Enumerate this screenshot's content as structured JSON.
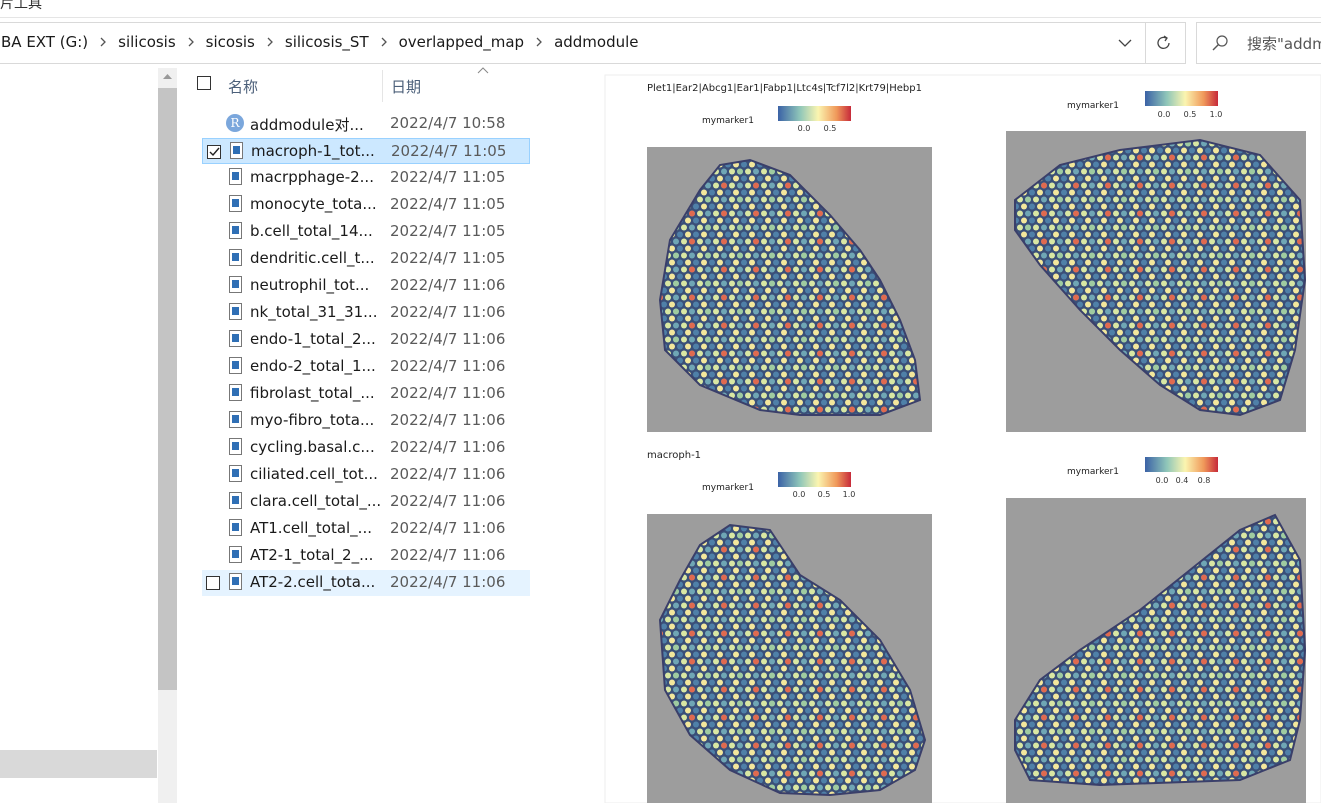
{
  "ribbon": {
    "tab": "片工具"
  },
  "address": {
    "path": [
      "BA EXT (G:)",
      "silicosis",
      "sicosis",
      "silicosis_ST",
      "overlapped_map",
      "addmodule"
    ]
  },
  "search": {
    "placeholder": "搜索\"addm"
  },
  "columns": {
    "name": "名称",
    "date": "日期"
  },
  "files": [
    {
      "name": "addmodule对...",
      "date": "2022/4/7 10:58",
      "icon": "R"
    },
    {
      "name": "macroph-1_tot...",
      "date": "2022/4/7 11:05",
      "selected": true
    },
    {
      "name": "macrpphage-2...",
      "date": "2022/4/7 11:05"
    },
    {
      "name": "monocyte_tota...",
      "date": "2022/4/7 11:05"
    },
    {
      "name": "b.cell_total_14...",
      "date": "2022/4/7 11:05"
    },
    {
      "name": "dendritic.cell_t...",
      "date": "2022/4/7 11:05"
    },
    {
      "name": "neutrophil_tot...",
      "date": "2022/4/7 11:06"
    },
    {
      "name": "nk_total_31_31...",
      "date": "2022/4/7 11:06"
    },
    {
      "name": "endo-1_total_2...",
      "date": "2022/4/7 11:06"
    },
    {
      "name": "endo-2_total_1...",
      "date": "2022/4/7 11:06"
    },
    {
      "name": "fibrolast_total_...",
      "date": "2022/4/7 11:06"
    },
    {
      "name": "myo-fibro_tota...",
      "date": "2022/4/7 11:06"
    },
    {
      "name": "cycling.basal.c...",
      "date": "2022/4/7 11:06"
    },
    {
      "name": "ciliated.cell_tot...",
      "date": "2022/4/7 11:06"
    },
    {
      "name": "clara.cell_total_...",
      "date": "2022/4/7 11:06"
    },
    {
      "name": "AT1.cell_total_...",
      "date": "2022/4/7 11:06"
    },
    {
      "name": "AT2-1_total_2_...",
      "date": "2022/4/7 11:06"
    },
    {
      "name": "AT2-2.cell_tota...",
      "date": "2022/4/7 11:06",
      "hover": true
    }
  ],
  "preview": {
    "panels": [
      {
        "title": "Plet1|Ear2|Abcg1|Ear1|Fabp1|Ltc4s|Tcf7l2|Krt79|Hebp1",
        "legend": "mymarker1",
        "ticks": [
          "0.0",
          "0.5"
        ]
      },
      {
        "legend": "mymarker1",
        "ticks": [
          "0.0",
          "0.5",
          "1.0"
        ]
      },
      {
        "title": "macroph-1",
        "legend": "mymarker1",
        "ticks": [
          "0.0",
          "0.5",
          "1.0"
        ]
      },
      {
        "legend": "mymarker1",
        "ticks": [
          "0.0",
          "0.4",
          "0.8"
        ]
      }
    ]
  }
}
